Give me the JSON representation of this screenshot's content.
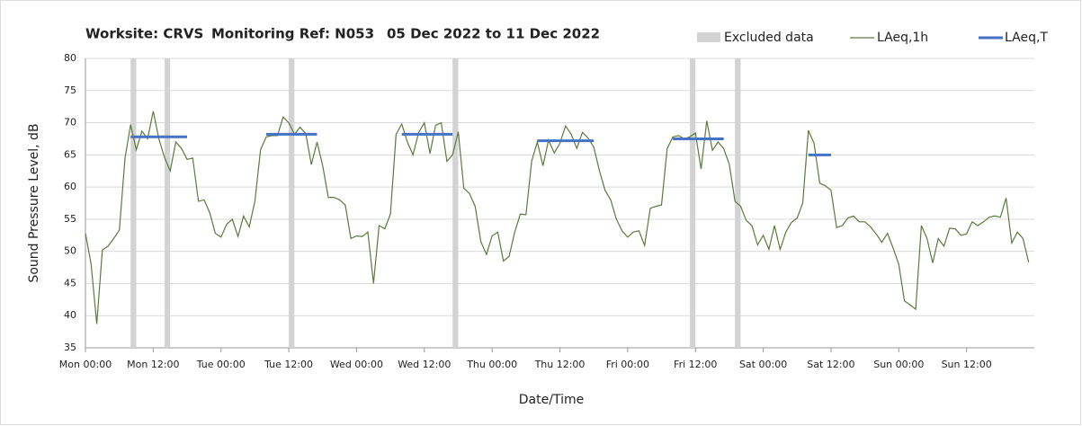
{
  "chart_data": {
    "type": "line",
    "title": "Worksite: CRVS",
    "monitoring_ref": "Monitoring Ref: N053",
    "period": "05 Dec 2022 to 11 Dec 2022",
    "x_label": "Date/Time",
    "y_label": "Sound Pressure Level, dB",
    "xlim": [
      0,
      168
    ],
    "ylim": [
      35,
      80
    ],
    "yticks": [
      35,
      40,
      45,
      50,
      55,
      60,
      65,
      70,
      75,
      80
    ],
    "xticks": [
      {
        "value": 0,
        "label": "Mon 00:00"
      },
      {
        "value": 12,
        "label": "Mon 12:00"
      },
      {
        "value": 24,
        "label": "Tue 00:00"
      },
      {
        "value": 36,
        "label": "Tue 12:00"
      },
      {
        "value": 48,
        "label": "Wed 00:00"
      },
      {
        "value": 60,
        "label": "Wed 12:00"
      },
      {
        "value": 72,
        "label": "Thu 00:00"
      },
      {
        "value": 84,
        "label": "Thu 12:00"
      },
      {
        "value": 96,
        "label": "Fri 00:00"
      },
      {
        "value": 108,
        "label": "Fri 12:00"
      },
      {
        "value": 120,
        "label": "Sat 00:00"
      },
      {
        "value": 132,
        "label": "Sat 12:00"
      },
      {
        "value": 144,
        "label": "Sun 00:00"
      },
      {
        "value": 156,
        "label": "Sun 12:00"
      }
    ],
    "grid": true,
    "legend": "top-right",
    "excluded": {
      "name": "Excluded data",
      "color": "#d3d3d3",
      "start": [
        8,
        14,
        36,
        65,
        107,
        115
      ],
      "end": [
        9,
        15,
        37,
        66,
        108,
        116
      ]
    },
    "series": [
      {
        "name": "LAeq,1h",
        "color": "#5b7a3c",
        "x": [
          0,
          1,
          2,
          3,
          4,
          5,
          6,
          7,
          8,
          9,
          10,
          11,
          12,
          13,
          14,
          15,
          16,
          17,
          18,
          19,
          20,
          21,
          22,
          23,
          24,
          25,
          26,
          27,
          28,
          29,
          30,
          31,
          32,
          33,
          34,
          35,
          36,
          37,
          38,
          39,
          40,
          41,
          42,
          43,
          44,
          45,
          46,
          47,
          48,
          49,
          50,
          51,
          52,
          53,
          54,
          55,
          56,
          57,
          58,
          59,
          60,
          61,
          62,
          63,
          64,
          65,
          66,
          67,
          68,
          69,
          70,
          71,
          72,
          73,
          74,
          75,
          76,
          77,
          78,
          79,
          80,
          81,
          82,
          83,
          84,
          85,
          86,
          87,
          88,
          89,
          90,
          91,
          92,
          93,
          94,
          95,
          96,
          97,
          98,
          99,
          100,
          101,
          102,
          103,
          104,
          105,
          106,
          107,
          108,
          109,
          110,
          111,
          112,
          113,
          114,
          115,
          116,
          117,
          118,
          119,
          120,
          121,
          122,
          123,
          124,
          125,
          126,
          127,
          128,
          129,
          130,
          131,
          132,
          133,
          134,
          135,
          136,
          137,
          138,
          139,
          140,
          141,
          142,
          143,
          144,
          145,
          146,
          147,
          148,
          149,
          150,
          151,
          152,
          153,
          154,
          155,
          156,
          157,
          158,
          159,
          160,
          161,
          162,
          163,
          164,
          165,
          166,
          167
        ],
        "values": [
          52.8,
          48,
          38.7,
          50.2,
          50.8,
          52,
          53.3,
          64.5,
          69.7,
          65.8,
          68.7,
          67.5,
          71.8,
          67.5,
          64.6,
          62.5,
          67,
          66,
          64.3,
          64.5,
          57.8,
          58,
          56,
          52.8,
          52.2,
          54.2,
          55,
          52.3,
          55.5,
          53.8,
          57.8,
          65.8,
          67.8,
          68,
          68,
          70.9,
          70,
          68.2,
          69.3,
          68.3,
          63.5,
          67,
          63.3,
          58.4,
          58.4,
          58,
          57.2,
          52,
          52.4,
          52.3,
          53,
          45,
          54,
          53.5,
          55.8,
          68.2,
          69.8,
          67,
          65,
          68.5,
          70,
          65.2,
          69.6,
          70,
          64,
          65,
          68.6,
          59.8,
          59,
          57,
          51.5,
          49.5,
          52.4,
          53,
          48.5,
          49.2,
          53,
          55.8,
          55.7,
          64,
          67,
          63.3,
          67.3,
          65.3,
          66.8,
          69.5,
          68.2,
          66,
          68.5,
          67.6,
          66.2,
          62.5,
          59.5,
          58,
          55,
          53.2,
          52.2,
          53,
          53.2,
          50.9,
          56.7,
          57,
          57.2,
          66,
          67.8,
          68,
          67.5,
          67.8,
          68.4,
          62.8,
          70.3,
          65.7,
          67,
          66,
          63.5,
          57.8,
          57,
          54.8,
          54,
          51,
          52.5,
          50.3,
          54,
          50.3,
          53,
          54.5,
          55.2,
          57.5,
          68.8,
          66.8,
          60.6,
          60.2,
          59.5,
          53.7,
          54,
          55.2,
          55.5,
          54.6,
          54.6,
          53.8,
          52.7,
          51.4,
          52.8,
          50.5,
          48,
          42.3,
          41.7,
          41,
          54,
          52,
          48.2,
          52,
          50.8,
          53.6,
          53.5,
          52.5,
          52.7,
          54.6,
          54,
          54.6,
          55.3,
          55.5,
          55.3,
          58.3,
          51.3,
          53,
          52,
          48.3
        ]
      },
      {
        "name": "LAeq,T",
        "color": "#4472c4",
        "start": [
          8,
          32,
          56,
          80,
          104,
          128
        ],
        "end": [
          18,
          41,
          65,
          90,
          113,
          132
        ],
        "values": [
          67.8,
          68.2,
          68.2,
          67.2,
          67.5,
          65
        ]
      }
    ]
  }
}
